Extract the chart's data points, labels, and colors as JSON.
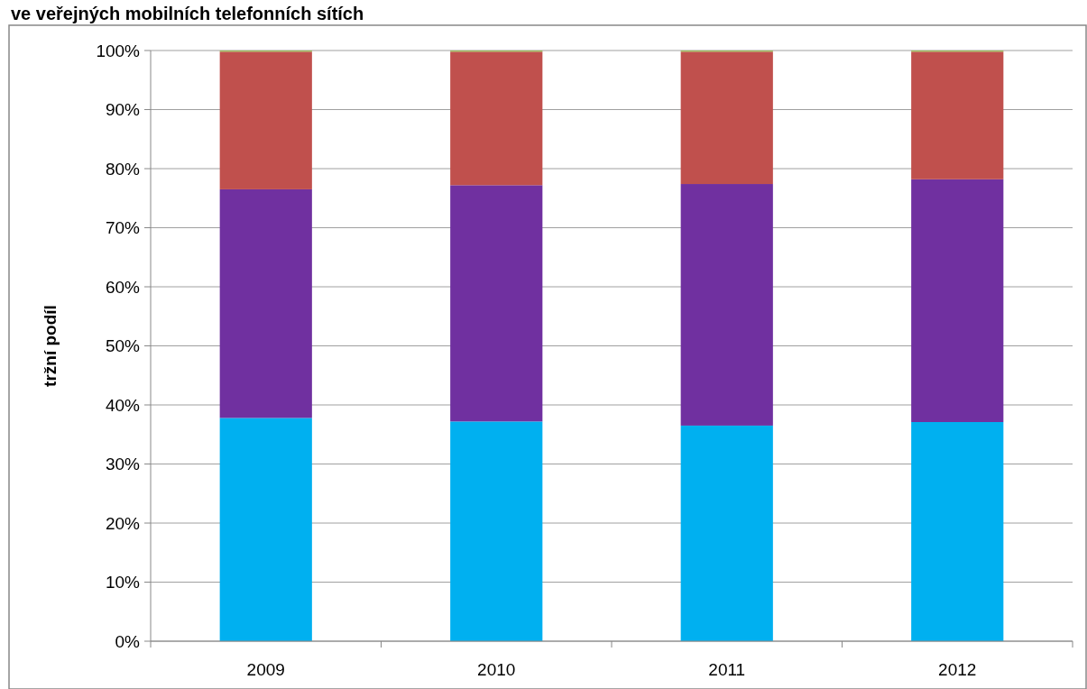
{
  "chart_data": {
    "type": "bar",
    "title": "ve veřejných mobilních telefonních sítích",
    "ylabel": "tržní podíl",
    "categories": [
      "2009",
      "2010",
      "2011",
      "2012"
    ],
    "stacked": true,
    "series": [
      {
        "color": "#00b0f0",
        "values": [
          37.8,
          37.2,
          36.5,
          37.1
        ]
      },
      {
        "color": "#7030a0",
        "values": [
          38.7,
          40.0,
          40.9,
          41.1
        ]
      },
      {
        "color": "#c0504d",
        "values": [
          23.3,
          22.6,
          22.4,
          21.6
        ]
      },
      {
        "color": "#9bbb59",
        "values": [
          0.2,
          0.2,
          0.2,
          0.2
        ]
      }
    ],
    "ylim": [
      0,
      100
    ],
    "yticks": [
      {
        "value": 0,
        "label": "0%"
      },
      {
        "value": 10,
        "label": "10%"
      },
      {
        "value": 20,
        "label": "20%"
      },
      {
        "value": 30,
        "label": "30%"
      },
      {
        "value": 40,
        "label": "40%"
      },
      {
        "value": 50,
        "label": "50%"
      },
      {
        "value": 60,
        "label": "60%"
      },
      {
        "value": 70,
        "label": "70%"
      },
      {
        "value": 80,
        "label": "80%"
      },
      {
        "value": 90,
        "label": "90%"
      },
      {
        "value": 100,
        "label": "100%"
      }
    ],
    "grid": "y"
  }
}
